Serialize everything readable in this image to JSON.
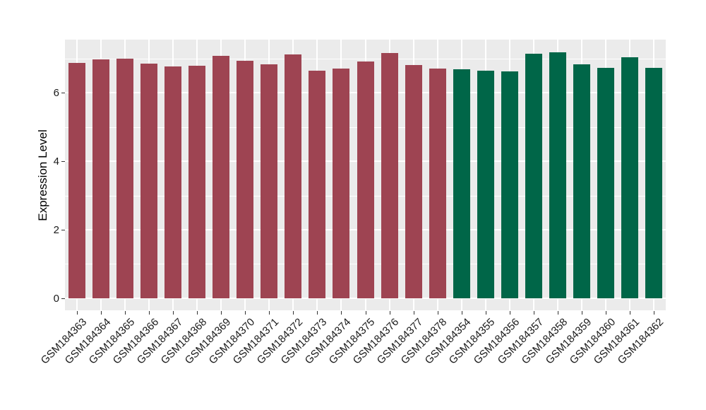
{
  "chart_data": {
    "type": "bar",
    "title": "",
    "xlabel": "",
    "ylabel": "Expression Level",
    "categories": [
      "GSM184363",
      "GSM184364",
      "GSM184365",
      "GSM184366",
      "GSM184367",
      "GSM184368",
      "GSM184369",
      "GSM184370",
      "GSM184371",
      "GSM184372",
      "GSM184373",
      "GSM184374",
      "GSM184375",
      "GSM184376",
      "GSM184377",
      "GSM184378",
      "GSM184354",
      "GSM184355",
      "GSM184356",
      "GSM184357",
      "GSM184358",
      "GSM184359",
      "GSM184360",
      "GSM184361",
      "GSM184362"
    ],
    "values": [
      6.87,
      6.98,
      7.0,
      6.85,
      6.78,
      6.8,
      7.09,
      6.94,
      6.83,
      7.12,
      6.66,
      6.72,
      6.91,
      7.16,
      6.81,
      6.72,
      6.7,
      6.65,
      6.62,
      7.14,
      7.18,
      6.83,
      6.74,
      7.05,
      6.74
    ],
    "colors": [
      "#9E4452",
      "#9E4452",
      "#9E4452",
      "#9E4452",
      "#9E4452",
      "#9E4452",
      "#9E4452",
      "#9E4452",
      "#9E4452",
      "#9E4452",
      "#9E4452",
      "#9E4452",
      "#9E4452",
      "#9E4452",
      "#9E4452",
      "#9E4452",
      "#006648",
      "#006648",
      "#006648",
      "#006648",
      "#006648",
      "#006648",
      "#006648",
      "#006648",
      "#006648"
    ],
    "group_colors": {
      "left_group_hex": "#9E4452",
      "right_group_hex": "#006648"
    },
    "y_ticks": [
      0,
      2,
      4,
      6
    ],
    "y_tick_labels": [
      "0",
      "2",
      "4",
      "6"
    ],
    "y_minor_ticks": [
      1,
      3,
      5,
      7
    ],
    "ylim": [
      -0.36,
      7.56
    ],
    "grid": true,
    "legend": "none",
    "styling": {
      "page_background": "#FFFFFF",
      "panel_background": "#EBEBEB",
      "gridline_color": "#FFFFFF",
      "tick_mark_color": "#333333",
      "axis_text_color": "#1A1A1A",
      "axis_title_color": "#000000"
    }
  }
}
